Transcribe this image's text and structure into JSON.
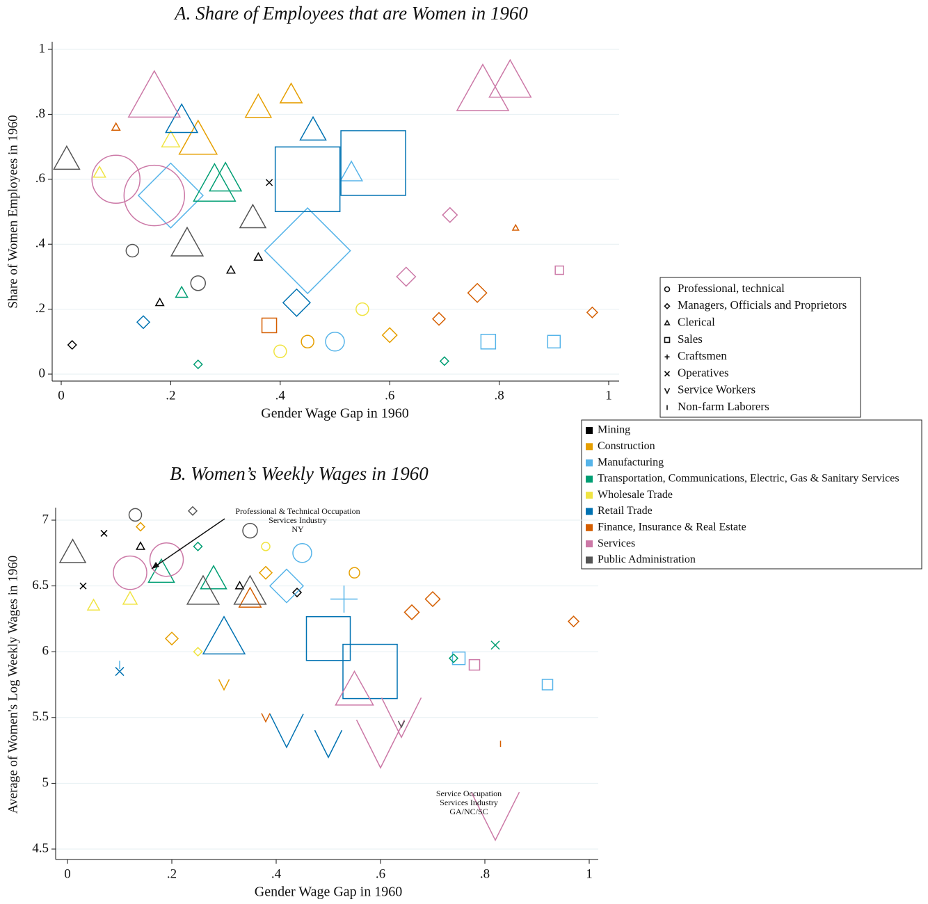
{
  "chart_data": [
    {
      "type": "scatter",
      "title": "A.   Share of Employees that are Women in 1960",
      "x_label": "Gender Wage Gap in 1960",
      "y_label": "Share of Women Employees in 1960",
      "xlim": [
        0,
        1
      ],
      "ylim": [
        0,
        1
      ],
      "xticks": [
        0,
        {
          "value": 0.2,
          "label": ".2"
        },
        {
          "value": 0.4,
          "label": ".4"
        },
        {
          "value": 0.6,
          "label": ".6"
        },
        {
          "value": 0.8,
          "label": ".8"
        },
        1
      ],
      "yticks": [
        0,
        {
          "value": 0.2,
          "label": ".2"
        },
        {
          "value": 0.4,
          "label": ".4"
        },
        {
          "value": 0.6,
          "label": ".6"
        },
        {
          "value": 0.8,
          "label": ".8"
        },
        1
      ],
      "grid": true,
      "shape_legend": [
        {
          "name": "Professional, technical",
          "shape": "circle"
        },
        {
          "name": "Managers, Officials and Proprietors",
          "shape": "diamond"
        },
        {
          "name": "Clerical",
          "shape": "triangle"
        },
        {
          "name": "Sales",
          "shape": "square"
        },
        {
          "name": "Craftsmen",
          "shape": "plus"
        },
        {
          "name": "Operatives",
          "shape": "x"
        },
        {
          "name": "Service Workers",
          "shape": "v"
        },
        {
          "name": "Non-farm Laborers",
          "shape": "bar"
        }
      ],
      "series": [
        {
          "name": "Mining",
          "color": "#000000",
          "x": [
            0.31,
            0.36,
            0.18,
            0.02,
            0.38
          ],
          "values": [
            0.32,
            0.36,
            0.22,
            0.09,
            0.59
          ],
          "sizes": [
            3,
            3,
            3,
            3,
            2
          ],
          "shapes": [
            "triangle",
            "triangle",
            "triangle",
            "diamond",
            "x"
          ]
        },
        {
          "name": "Construction",
          "color": "#e69f00",
          "x": [
            0.36,
            0.42,
            0.25,
            0.6,
            0.45
          ],
          "values": [
            0.82,
            0.86,
            0.72,
            0.12,
            0.1
          ],
          "sizes": [
            12,
            10,
            18,
            6,
            5
          ],
          "shapes": [
            "triangle",
            "triangle",
            "triangle",
            "diamond",
            "circle"
          ]
        },
        {
          "name": "Manufacturing",
          "color": "#56b4e9",
          "x": [
            0.45,
            0.2,
            0.5,
            0.78,
            0.9,
            0.53
          ],
          "values": [
            0.38,
            0.55,
            0.1,
            0.1,
            0.1,
            0.62
          ],
          "sizes": [
            40,
            30,
            8,
            6,
            5,
            10
          ],
          "shapes": [
            "diamond",
            "diamond",
            "circle",
            "square",
            "square",
            "triangle"
          ]
        },
        {
          "name": "Transportation, Communications, Electric, Gas & Sanitary Services",
          "color": "#009e73",
          "x": [
            0.28,
            0.3,
            0.25,
            0.7,
            0.22
          ],
          "values": [
            0.58,
            0.6,
            0.03,
            0.04,
            0.25
          ],
          "sizes": [
            20,
            15,
            3,
            3,
            5
          ],
          "shapes": [
            "triangle",
            "triangle",
            "diamond",
            "diamond",
            "triangle"
          ]
        },
        {
          "name": "Wholesale Trade",
          "color": "#f0e442",
          "x": [
            0.2,
            0.4,
            0.07,
            0.55
          ],
          "values": [
            0.72,
            0.07,
            0.62,
            0.2
          ],
          "sizes": [
            8,
            5,
            5,
            5
          ],
          "shapes": [
            "triangle",
            "circle",
            "triangle",
            "circle"
          ]
        },
        {
          "name": "Retail Trade",
          "color": "#0072b2",
          "x": [
            0.57,
            0.45,
            0.22,
            0.46,
            0.43,
            0.15
          ],
          "values": [
            0.65,
            0.6,
            0.78,
            0.75,
            0.22,
            0.16
          ],
          "sizes": [
            30,
            30,
            15,
            12,
            12,
            5
          ],
          "shapes": [
            "square",
            "square",
            "triangle",
            "triangle",
            "diamond",
            "diamond"
          ]
        },
        {
          "name": "Finance, Insurance & Real Estate",
          "color": "#d55e00",
          "x": [
            0.76,
            0.97,
            0.69,
            0.38,
            0.83,
            0.1
          ],
          "values": [
            0.25,
            0.19,
            0.17,
            0.15,
            0.45,
            0.76
          ],
          "sizes": [
            8,
            4,
            5,
            6,
            2,
            3
          ],
          "shapes": [
            "diamond",
            "diamond",
            "diamond",
            "square",
            "triangle",
            "triangle"
          ]
        },
        {
          "name": "Services",
          "color": "#cc79a7",
          "x": [
            0.1,
            0.17,
            0.17,
            0.77,
            0.82,
            0.63,
            0.91,
            0.71
          ],
          "values": [
            0.6,
            0.55,
            0.85,
            0.87,
            0.9,
            0.3,
            0.32,
            0.49
          ],
          "sizes": [
            22,
            28,
            25,
            25,
            20,
            8,
            3,
            6
          ],
          "shapes": [
            "circle",
            "circle",
            "triangle",
            "triangle",
            "triangle",
            "diamond",
            "square",
            "diamond"
          ]
        },
        {
          "name": "Public Administration",
          "color": "#555555",
          "x": [
            0.01,
            0.23,
            0.13,
            0.25,
            0.35
          ],
          "values": [
            0.66,
            0.4,
            0.38,
            0.28,
            0.48
          ],
          "sizes": [
            12,
            15,
            5,
            6,
            12
          ],
          "shapes": [
            "triangle",
            "triangle",
            "circle",
            "circle",
            "triangle"
          ]
        }
      ]
    },
    {
      "type": "scatter",
      "title": "B.   Women’s Weekly Wages in 1960",
      "x_label": "Gender Wage Gap in 1960",
      "y_label": "Average of Women's Log Weekly Wages in 1960",
      "xlim": [
        0,
        1
      ],
      "ylim": [
        4.5,
        7
      ],
      "xticks": [
        0,
        {
          "value": 0.2,
          "label": ".2"
        },
        {
          "value": 0.4,
          "label": ".4"
        },
        {
          "value": 0.6,
          "label": ".6"
        },
        {
          "value": 0.8,
          "label": ".8"
        },
        1
      ],
      "yticks": [
        4.5,
        5,
        5.5,
        6,
        6.5,
        7
      ],
      "grid": true,
      "annotations": [
        {
          "lines": [
            "Professional & Technical Occupation",
            "Services Industry",
            "NY"
          ]
        },
        {
          "lines": [
            "Service Occupation",
            "Services Industry",
            "GA/NC/SC"
          ]
        }
      ],
      "series": [
        {
          "color": "#000000",
          "x": [
            0.07,
            0.14,
            0.33,
            0.03,
            0.44
          ],
          "values": [
            6.9,
            6.8,
            6.5,
            6.5,
            6.45
          ],
          "sizes": [
            2,
            3,
            3,
            2,
            3
          ],
          "shapes": [
            "x",
            "triangle",
            "triangle",
            "x",
            "diamond"
          ]
        },
        {
          "color": "#e69f00",
          "x": [
            0.2,
            0.38,
            0.14,
            0.55,
            0.3
          ],
          "values": [
            6.1,
            6.6,
            6.95,
            6.6,
            5.75
          ],
          "sizes": [
            5,
            5,
            3,
            4,
            4
          ],
          "shapes": [
            "diamond",
            "diamond",
            "diamond",
            "circle",
            "v"
          ]
        },
        {
          "color": "#56b4e9",
          "x": [
            0.42,
            0.53,
            0.75,
            0.92,
            0.1,
            0.45
          ],
          "values": [
            6.5,
            6.4,
            5.95,
            5.75,
            5.9,
            6.75
          ],
          "sizes": [
            15,
            12,
            5,
            4,
            3,
            8
          ],
          "shapes": [
            "diamond",
            "plus",
            "square",
            "square",
            "bar",
            "circle"
          ]
        },
        {
          "color": "#009e73",
          "x": [
            0.18,
            0.28,
            0.25,
            0.82,
            0.74
          ],
          "values": [
            6.6,
            6.55,
            6.8,
            6.05,
            5.95
          ],
          "sizes": [
            12,
            12,
            3,
            3,
            3
          ],
          "shapes": [
            "triangle",
            "triangle",
            "diamond",
            "x",
            "diamond"
          ]
        },
        {
          "color": "#f0e442",
          "x": [
            0.05,
            0.12,
            0.38,
            0.25
          ],
          "values": [
            6.35,
            6.4,
            6.8,
            6.0
          ],
          "sizes": [
            5,
            6,
            3,
            3
          ],
          "shapes": [
            "triangle",
            "triangle",
            "circle",
            "diamond"
          ]
        },
        {
          "color": "#0072b2",
          "x": [
            0.58,
            0.5,
            0.3,
            0.42,
            0.5,
            0.1
          ],
          "values": [
            5.85,
            6.1,
            6.1,
            5.4,
            5.3,
            5.85
          ],
          "sizes": [
            25,
            20,
            20,
            15,
            12,
            3
          ],
          "shapes": [
            "square",
            "square",
            "triangle",
            "v",
            "v",
            "x"
          ]
        },
        {
          "color": "#d55e00",
          "x": [
            0.7,
            0.97,
            0.66,
            0.35,
            0.83,
            0.38
          ],
          "values": [
            6.4,
            6.23,
            6.3,
            6.4,
            5.3,
            5.5
          ],
          "sizes": [
            6,
            4,
            6,
            10,
            2,
            3
          ],
          "shapes": [
            "diamond",
            "diamond",
            "diamond",
            "triangle",
            "bar",
            "v"
          ]
        },
        {
          "color": "#cc79a7",
          "x": [
            0.12,
            0.19,
            0.6,
            0.82,
            0.64,
            0.55,
            0.78
          ],
          "values": [
            6.6,
            6.7,
            5.3,
            4.75,
            5.5,
            5.7,
            5.9
          ],
          "sizes": [
            15,
            15,
            22,
            22,
            18,
            18,
            4
          ],
          "shapes": [
            "circle",
            "circle",
            "v",
            "v",
            "v",
            "triangle",
            "square"
          ]
        },
        {
          "color": "#555555",
          "x": [
            0.01,
            0.26,
            0.35,
            0.13,
            0.35,
            0.24,
            0.64
          ],
          "values": [
            6.75,
            6.45,
            6.45,
            7.04,
            6.92,
            7.07,
            5.45
          ],
          "sizes": [
            12,
            15,
            15,
            5,
            6,
            3,
            2
          ],
          "shapes": [
            "triangle",
            "triangle",
            "triangle",
            "circle",
            "circle",
            "diamond",
            "v"
          ]
        }
      ]
    }
  ]
}
